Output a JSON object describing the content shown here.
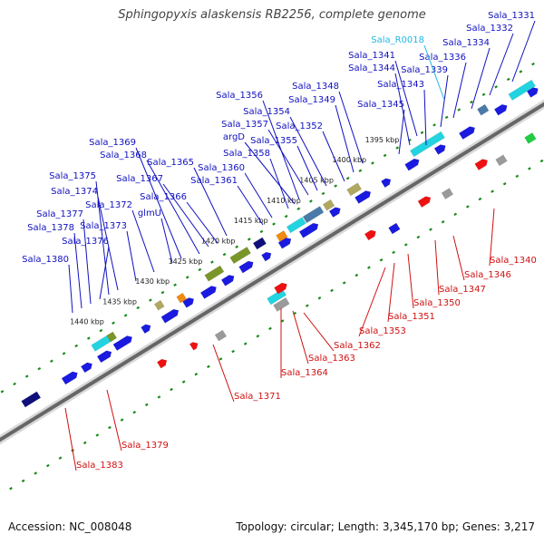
{
  "header": {
    "title": "Sphingopyxis alaskensis RB2256, complete genome"
  },
  "footer": {
    "accession": "Accession: NC_008048",
    "summary": "Topology: circular; Length: 3,345,170 bp; Genes: 3,217"
  },
  "ticks": [
    "1395 kbp",
    "1400 kbp",
    "1405 kbp",
    "1410 kbp",
    "1415 kbp",
    "1420 kbp",
    "1425 kbp",
    "1430 kbp",
    "1435 kbp",
    "1440 kbp"
  ],
  "labels_forward": [
    "Sala_1331",
    "Sala_1332",
    "Sala_1334",
    "Sala_1336",
    "Sala_1339",
    "Sala_1341",
    "Sala_1343",
    "Sala_1344",
    "Sala_1345",
    "Sala_1348",
    "Sala_1349",
    "Sala_1352",
    "Sala_1354",
    "Sala_1355",
    "Sala_1356",
    "Sala_1357",
    "argD",
    "Sala_1358",
    "Sala_1360",
    "Sala_1361",
    "Sala_1365",
    "Sala_1366",
    "Sala_1367",
    "Sala_1368",
    "Sala_1369",
    "glmU",
    "Sala_1372",
    "Sala_1373",
    "Sala_1374",
    "Sala_1375",
    "Sala_1376",
    "Sala_1377",
    "Sala_1378",
    "Sala_1380"
  ],
  "label_rna": "Sala_R0018",
  "labels_reverse": [
    "Sala_1340",
    "Sala_1346",
    "Sala_1347",
    "Sala_1350",
    "Sala_1351",
    "Sala_1353",
    "Sala_1362",
    "Sala_1363",
    "Sala_1364",
    "Sala_1371",
    "Sala_1379",
    "Sala_1383"
  ],
  "colors": {
    "forward_label": "#1010c0",
    "reverse_label": "#d01010",
    "rna_label": "#20b8e0",
    "backbone": "#666666",
    "tick_mark": "#1a8a1a",
    "gene_blue": "#1a1ae0",
    "gene_red": "#ee1111",
    "gene_cyan": "#22d4e0",
    "gene_navy": "#10107a",
    "gene_olive": "#7a9628",
    "gene_steel": "#4a7aa8",
    "gene_khaki": "#b0a860",
    "gene_orange": "#f08a10",
    "gene_grey": "#9a9a9a",
    "gene_pink": "#ff3a8a",
    "gene_green": "#22cc44"
  }
}
